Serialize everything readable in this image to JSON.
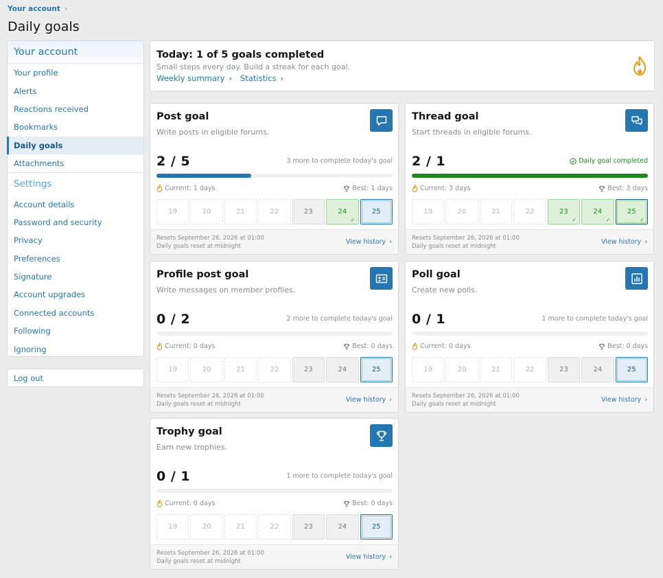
{
  "breadcrumb": {
    "label": "Your account",
    "chevron": "›"
  },
  "page_title": "Daily goals",
  "sidebar": {
    "header": "Your account",
    "items": [
      {
        "label": "Your profile"
      },
      {
        "label": "Alerts"
      },
      {
        "label": "Reactions received"
      },
      {
        "label": "Bookmarks"
      },
      {
        "label": "Daily goals",
        "active": true
      },
      {
        "label": "Attachments"
      }
    ],
    "settings_header": "Settings",
    "settings_items": [
      {
        "label": "Account details"
      },
      {
        "label": "Password and security"
      },
      {
        "label": "Privacy"
      },
      {
        "label": "Preferences"
      },
      {
        "label": "Signature"
      },
      {
        "label": "Account upgrades"
      },
      {
        "label": "Connected accounts"
      },
      {
        "label": "Following"
      },
      {
        "label": "Ignoring"
      }
    ],
    "logout": "Log out"
  },
  "summary": {
    "title": "Today: 1 of 5 goals completed",
    "subtitle": "Small steps every day. Build a streak for each goal.",
    "links": [
      "Weekly summary",
      "Statistics"
    ],
    "icon": "flame-icon"
  },
  "goals": [
    {
      "title": "Post goal",
      "desc": "Write posts in eligible forums.",
      "icon": "speech-bubble-icon",
      "count": "2 / 5",
      "progress": 0.4,
      "note": "3 more to complete today's goal",
      "completed": false,
      "current": "Current: 1 days",
      "best": "Best: 1 days",
      "days": [
        {
          "d": "19",
          "s": "empty"
        },
        {
          "d": "20",
          "s": "empty"
        },
        {
          "d": "21",
          "s": "empty"
        },
        {
          "d": "22",
          "s": "empty"
        },
        {
          "d": "23",
          "s": "gray"
        },
        {
          "d": "24",
          "s": "done"
        },
        {
          "d": "25",
          "s": "today"
        }
      ],
      "reset1": "Resets September 26, 2026 at 01:00",
      "reset2": "Daily goals reset at midnight",
      "history": "View history"
    },
    {
      "title": "Thread goal",
      "desc": "Start threads in eligible forums.",
      "icon": "conversation-icon",
      "count": "2 / 1",
      "progress": 1.0,
      "note": "Daily goal completed",
      "completed": true,
      "current": "Current: 3 days",
      "best": "Best: 3 days",
      "days": [
        {
          "d": "19",
          "s": "empty"
        },
        {
          "d": "20",
          "s": "empty"
        },
        {
          "d": "21",
          "s": "empty"
        },
        {
          "d": "22",
          "s": "empty"
        },
        {
          "d": "23",
          "s": "done"
        },
        {
          "d": "24",
          "s": "done"
        },
        {
          "d": "25",
          "s": "done-today"
        }
      ],
      "reset1": "Resets September 26, 2026 at 01:00",
      "reset2": "Daily goals reset at midnight",
      "history": "View history"
    },
    {
      "title": "Profile post goal",
      "desc": "Write messages on member profiles.",
      "icon": "id-card-icon",
      "count": "0 / 2",
      "progress": 0.0,
      "note": "2 more to complete today's goal",
      "completed": false,
      "current": "Current: 0 days",
      "best": "Best: 0 days",
      "days": [
        {
          "d": "19",
          "s": "empty"
        },
        {
          "d": "20",
          "s": "empty"
        },
        {
          "d": "21",
          "s": "empty"
        },
        {
          "d": "22",
          "s": "empty"
        },
        {
          "d": "23",
          "s": "gray"
        },
        {
          "d": "24",
          "s": "gray"
        },
        {
          "d": "25",
          "s": "today"
        }
      ],
      "reset1": "Resets September 26, 2026 at 01:00",
      "reset2": "Daily goals reset at midnight",
      "history": "View history"
    },
    {
      "title": "Poll goal",
      "desc": "Create new polls.",
      "icon": "bar-chart-icon",
      "count": "0 / 1",
      "progress": 0.0,
      "note": "1 more to complete today's goal",
      "completed": false,
      "current": "Current: 0 days",
      "best": "Best: 0 days",
      "days": [
        {
          "d": "19",
          "s": "empty"
        },
        {
          "d": "20",
          "s": "empty"
        },
        {
          "d": "21",
          "s": "empty"
        },
        {
          "d": "22",
          "s": "empty"
        },
        {
          "d": "23",
          "s": "gray"
        },
        {
          "d": "24",
          "s": "gray"
        },
        {
          "d": "25",
          "s": "today"
        }
      ],
      "reset1": "Resets September 26, 2026 at 01:00",
      "reset2": "Daily goals reset at midnight",
      "history": "View history"
    },
    {
      "title": "Trophy goal",
      "desc": "Earn new trophies.",
      "icon": "trophy-icon",
      "count": "0 / 1",
      "progress": 0.0,
      "note": "1 more to complete today's goal",
      "completed": false,
      "current": "Current: 0 days",
      "best": "Best: 0 days",
      "days": [
        {
          "d": "19",
          "s": "empty"
        },
        {
          "d": "20",
          "s": "empty"
        },
        {
          "d": "21",
          "s": "empty"
        },
        {
          "d": "22",
          "s": "empty"
        },
        {
          "d": "23",
          "s": "gray"
        },
        {
          "d": "24",
          "s": "gray"
        },
        {
          "d": "25",
          "s": "today"
        }
      ],
      "reset1": "Resets September 26, 2026 at 01:00",
      "reset2": "Daily goals reset at midnight",
      "history": "View history"
    }
  ],
  "colors": {
    "accent": "#2577b1",
    "success": "#1e8a1e",
    "flame": "#e8a020"
  }
}
